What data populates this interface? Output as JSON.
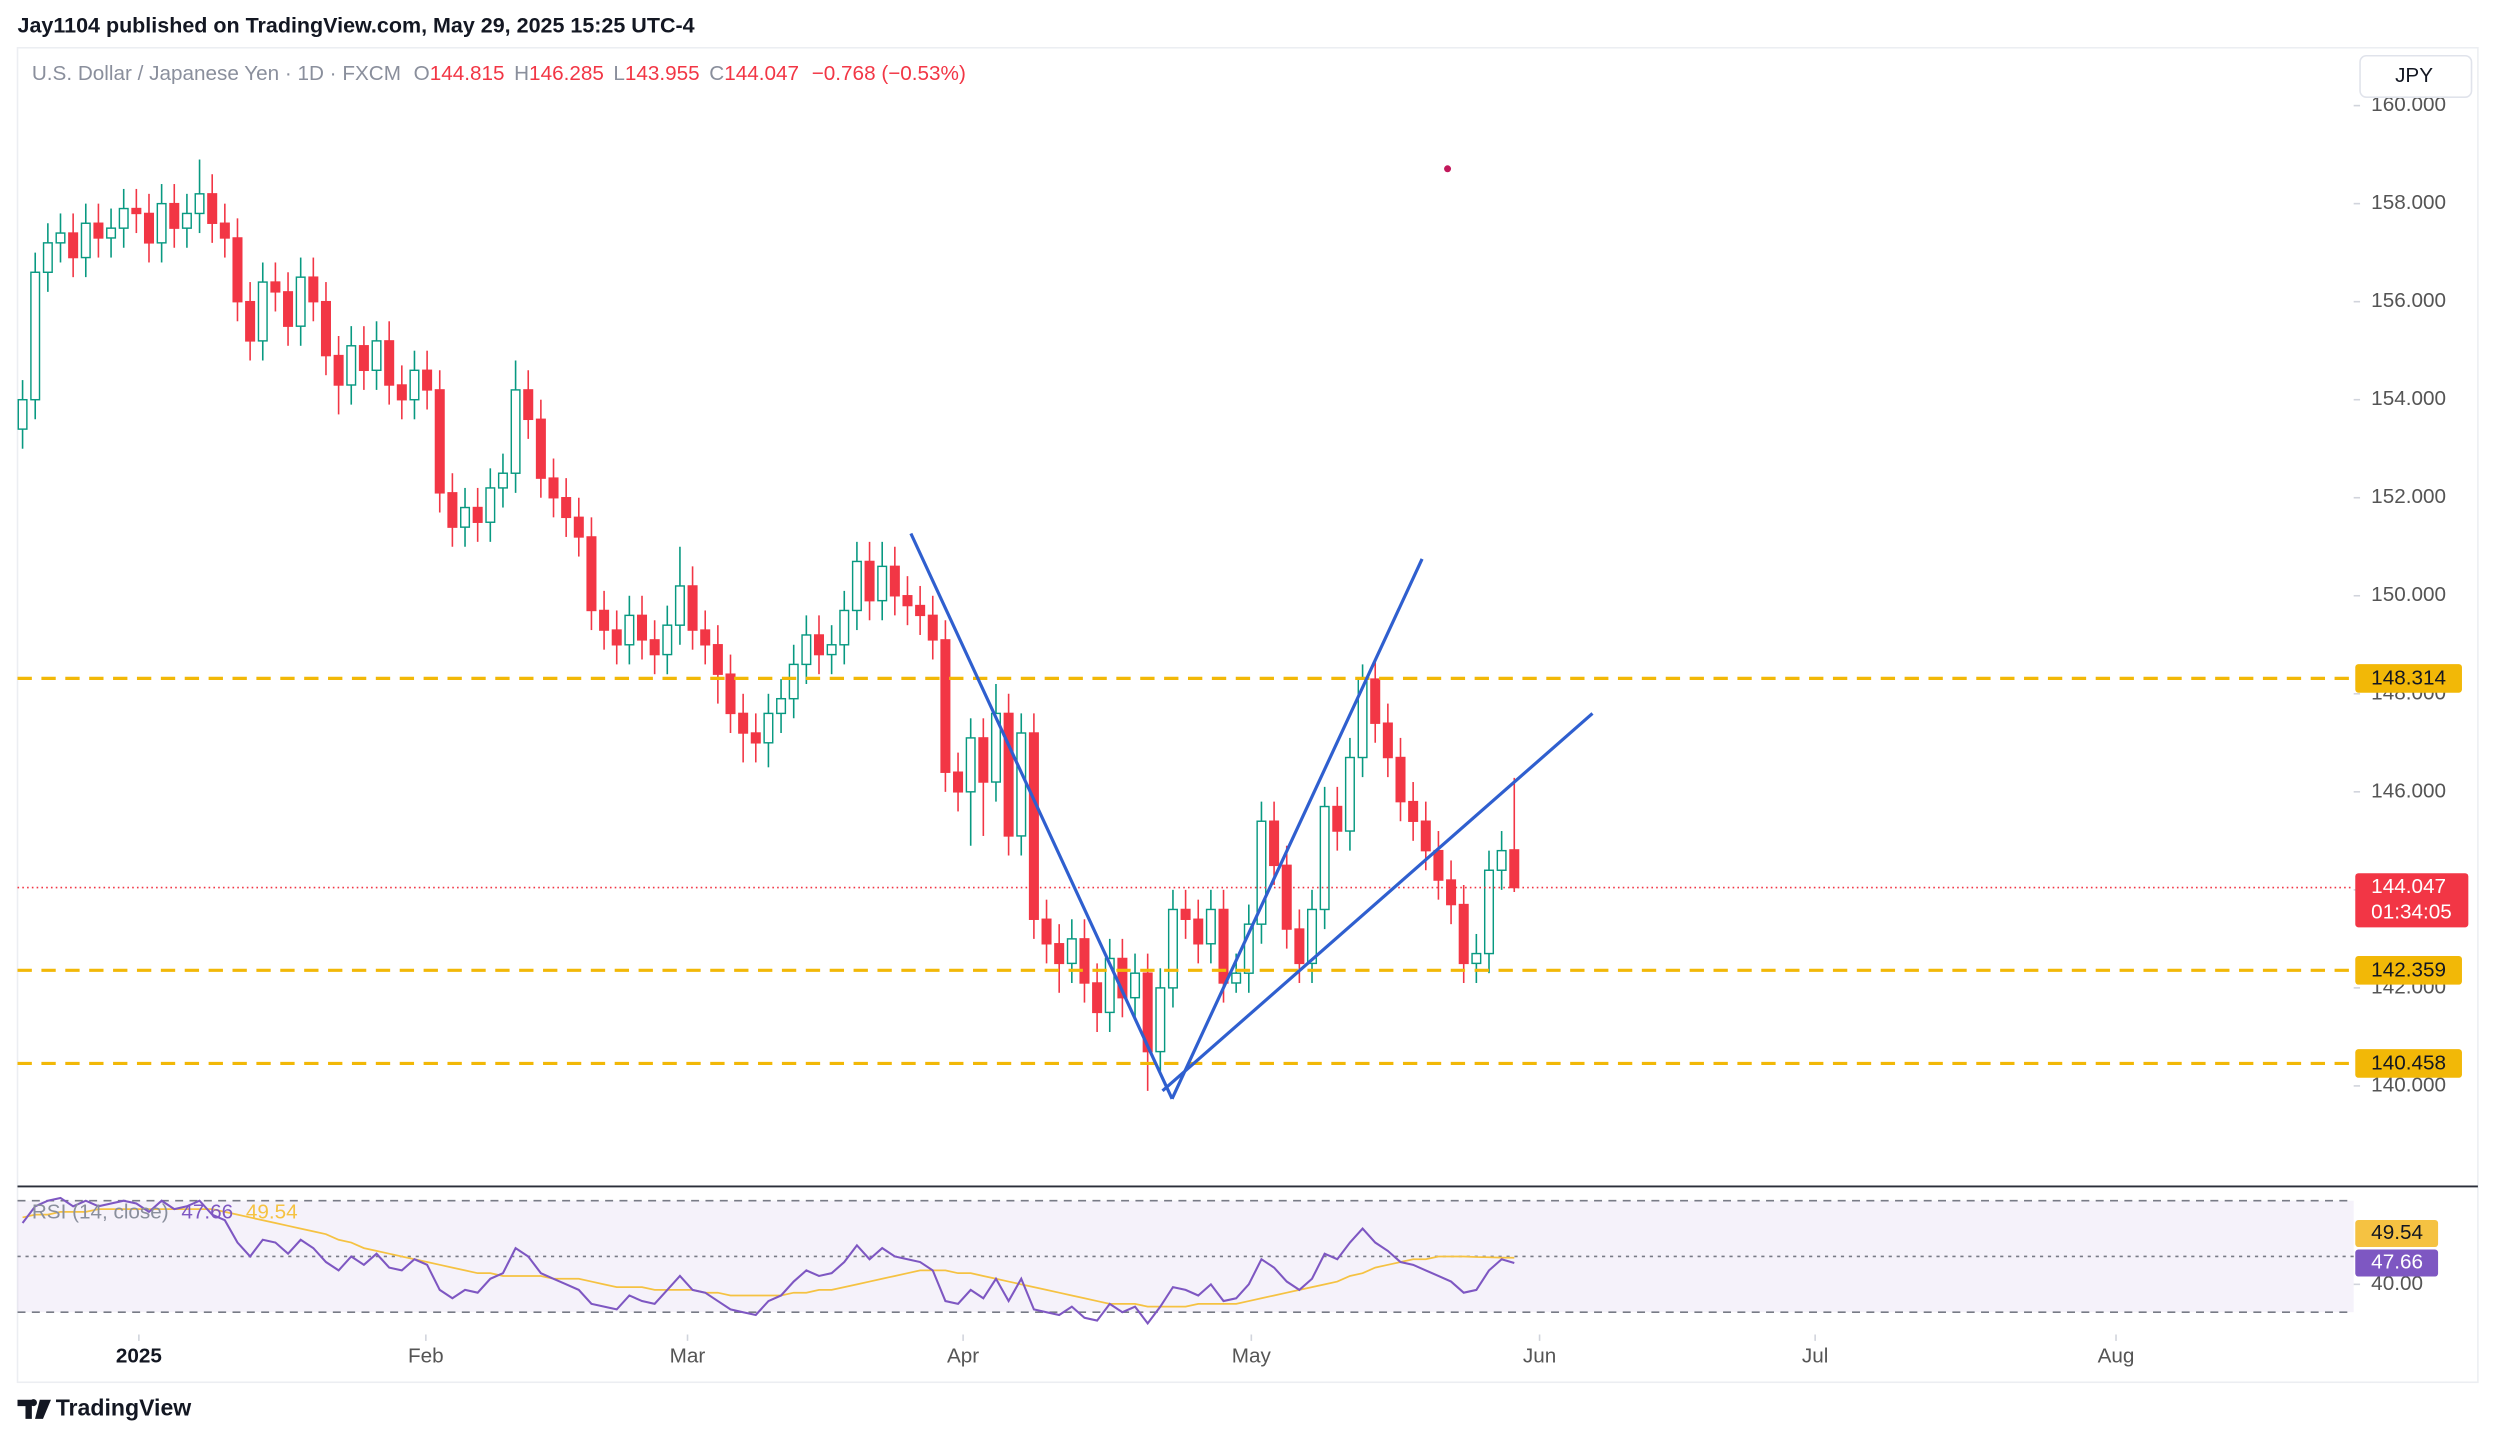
{
  "header": "Jay1104 published on TradingView.com, May 29, 2025 15:25 UTC-4",
  "footer": "TradingView",
  "chart_data": [
    {
      "type": "candlestick",
      "title": "U.S. Dollar / Japanese Yen · 1D · FXCM",
      "legend_keys": [
        "O",
        "H",
        "L",
        "C"
      ],
      "change": "−0.768 (−0.53%)",
      "currency": "JPY",
      "countdown": "01:34:05",
      "up_color": "#089981",
      "down_color": "#f23645",
      "level_color": "#f2b807",
      "grid": false,
      "open": [
        153.4,
        154.0,
        156.6,
        157.2,
        157.4,
        156.9,
        157.6,
        157.3,
        157.5,
        157.9,
        157.8,
        157.2,
        158.0,
        157.5,
        157.8,
        158.2,
        157.6,
        157.3,
        156.0,
        155.2,
        156.4,
        156.2,
        155.5,
        156.5,
        156.0,
        154.9,
        154.3,
        155.1,
        154.6,
        155.2,
        154.3,
        154.0,
        154.6,
        154.2,
        152.1,
        151.4,
        151.8,
        151.5,
        152.2,
        152.5,
        154.2,
        153.6,
        152.4,
        152.0,
        151.6,
        151.2,
        149.7,
        149.3,
        149.0,
        149.6,
        149.1,
        148.8,
        149.4,
        150.2,
        149.3,
        149.0,
        148.4,
        147.6,
        147.2,
        147.0,
        147.6,
        147.9,
        148.6,
        149.2,
        148.8,
        149.0,
        149.7,
        150.7,
        149.9,
        150.6,
        150.0,
        149.8,
        149.6,
        149.1,
        146.4,
        146.0,
        147.1,
        146.2,
        147.6,
        145.1,
        147.2,
        143.4,
        142.9,
        142.5,
        143.0,
        142.1,
        141.5,
        142.6,
        141.8,
        142.3,
        140.7,
        142.0,
        143.6,
        143.4,
        142.9,
        143.6,
        142.1,
        142.3,
        143.3,
        145.4,
        144.5,
        143.2,
        142.5,
        143.6,
        145.7,
        145.2,
        146.7,
        148.3,
        147.4,
        146.7,
        145.8,
        145.4,
        144.8,
        144.2,
        143.7,
        142.5,
        142.7,
        144.4,
        144.815
      ],
      "high": [
        154.4,
        157.0,
        157.6,
        157.8,
        157.8,
        158.0,
        158.0,
        157.9,
        158.3,
        158.3,
        158.2,
        158.4,
        158.4,
        158.2,
        158.9,
        158.6,
        158.0,
        157.7,
        156.4,
        156.8,
        156.8,
        156.6,
        156.9,
        156.9,
        156.4,
        155.3,
        155.5,
        155.5,
        155.6,
        155.6,
        154.7,
        155.0,
        155.0,
        154.6,
        152.5,
        152.2,
        152.2,
        152.6,
        152.9,
        154.8,
        154.6,
        154.0,
        152.8,
        152.4,
        152.0,
        151.6,
        150.1,
        149.7,
        150.0,
        150.0,
        149.5,
        149.8,
        151.0,
        150.6,
        149.7,
        149.4,
        148.8,
        148.0,
        147.6,
        148.0,
        148.3,
        149.0,
        149.6,
        149.6,
        149.4,
        150.1,
        151.1,
        151.1,
        151.1,
        151.0,
        150.4,
        150.2,
        150.0,
        149.5,
        146.8,
        147.5,
        147.5,
        148.2,
        148.0,
        147.6,
        147.6,
        143.8,
        143.3,
        143.4,
        143.4,
        142.5,
        143.0,
        143.0,
        142.7,
        142.7,
        142.4,
        144.0,
        144.0,
        143.8,
        144.0,
        144.0,
        142.7,
        143.7,
        145.8,
        145.8,
        144.9,
        143.6,
        144.0,
        146.1,
        146.1,
        147.1,
        148.6,
        148.7,
        147.8,
        147.1,
        146.2,
        145.8,
        145.2,
        144.6,
        144.1,
        143.1,
        144.8,
        145.2,
        146.285
      ],
      "low": [
        153.0,
        153.6,
        156.2,
        156.8,
        156.5,
        156.5,
        156.9,
        156.9,
        157.1,
        157.4,
        156.8,
        156.8,
        157.1,
        157.1,
        157.4,
        157.2,
        156.9,
        155.6,
        154.8,
        154.8,
        155.8,
        155.1,
        155.1,
        155.6,
        154.5,
        153.7,
        153.9,
        154.2,
        154.2,
        153.9,
        153.6,
        153.6,
        153.8,
        151.7,
        151.0,
        151.0,
        151.1,
        151.1,
        151.8,
        152.1,
        153.2,
        152.0,
        151.6,
        151.2,
        150.8,
        149.3,
        148.9,
        148.6,
        148.6,
        148.7,
        148.4,
        148.4,
        149.0,
        148.9,
        148.6,
        147.8,
        147.2,
        146.6,
        146.6,
        146.5,
        147.2,
        147.5,
        148.2,
        148.4,
        148.4,
        148.6,
        149.3,
        149.5,
        149.5,
        149.6,
        149.4,
        149.2,
        148.7,
        146.0,
        145.6,
        144.9,
        145.1,
        145.8,
        144.7,
        144.7,
        143.0,
        142.5,
        141.9,
        142.1,
        141.7,
        141.1,
        141.1,
        141.4,
        141.4,
        139.9,
        140.3,
        141.6,
        143.0,
        142.5,
        142.5,
        141.7,
        141.9,
        141.9,
        142.9,
        144.1,
        142.8,
        142.1,
        142.1,
        143.2,
        144.8,
        144.8,
        146.3,
        147.0,
        146.3,
        145.4,
        145.0,
        144.4,
        143.8,
        143.3,
        142.1,
        142.1,
        142.3,
        144.0,
        143.955
      ],
      "close": [
        154.0,
        156.6,
        157.2,
        157.4,
        156.9,
        157.6,
        157.3,
        157.5,
        157.9,
        157.8,
        157.2,
        158.0,
        157.5,
        157.8,
        158.2,
        157.6,
        157.3,
        156.0,
        155.2,
        156.4,
        156.2,
        155.5,
        156.5,
        156.0,
        154.9,
        154.3,
        155.1,
        154.6,
        155.2,
        154.3,
        154.0,
        154.6,
        154.2,
        152.1,
        151.4,
        151.8,
        151.5,
        152.2,
        152.5,
        154.2,
        153.6,
        152.4,
        152.0,
        151.6,
        151.2,
        149.7,
        149.3,
        149.0,
        149.6,
        149.1,
        148.8,
        149.4,
        150.2,
        149.3,
        149.0,
        148.4,
        147.6,
        147.2,
        147.0,
        147.6,
        147.9,
        148.6,
        149.2,
        148.8,
        149.0,
        149.7,
        150.7,
        149.9,
        150.6,
        150.0,
        149.8,
        149.6,
        149.1,
        146.4,
        146.0,
        147.1,
        146.2,
        147.6,
        145.1,
        147.2,
        143.4,
        142.9,
        142.5,
        143.0,
        142.1,
        141.5,
        142.6,
        141.8,
        142.3,
        140.7,
        142.0,
        143.6,
        143.4,
        142.9,
        143.6,
        142.1,
        142.3,
        143.3,
        145.4,
        144.5,
        143.2,
        142.5,
        143.6,
        145.7,
        145.2,
        146.7,
        148.3,
        147.4,
        146.7,
        145.8,
        145.4,
        144.8,
        144.2,
        143.7,
        142.5,
        142.7,
        144.4,
        144.8,
        144.047
      ],
      "levels": [
        148.314,
        142.359,
        140.458
      ],
      "ylim": [
        137.95,
        161.18
      ],
      "yticks": [
        {
          "value": 140,
          "label": "140.000"
        },
        {
          "value": 142,
          "label": "142.000"
        },
        {
          "value": 144,
          "label": "144.000"
        },
        {
          "value": 146,
          "label": "146.000"
        },
        {
          "value": 148,
          "label": "148.000"
        },
        {
          "value": 150,
          "label": "150.000"
        },
        {
          "value": 152,
          "label": "152.000"
        },
        {
          "value": 154,
          "label": "154.000"
        },
        {
          "value": 156,
          "label": "156.000"
        },
        {
          "value": 158,
          "label": "158.000"
        },
        {
          "value": 160,
          "label": "160.000"
        }
      ],
      "xlim": [
        -0.4,
        184.4
      ],
      "xticks": [
        {
          "value": 9.2,
          "label": "2025"
        },
        {
          "value": 31.9,
          "label": "Feb"
        },
        {
          "value": 52.6,
          "label": "Mar"
        },
        {
          "value": 74.4,
          "label": "Apr"
        },
        {
          "value": 97.2,
          "label": "May"
        },
        {
          "value": 120,
          "label": "Jun"
        },
        {
          "value": 141.8,
          "label": "Jul"
        },
        {
          "value": 165.6,
          "label": "Aug"
        }
      ]
    },
    {
      "type": "line",
      "title": "RSI (14, close)",
      "series": [
        {
          "color": "#7e57c2",
          "values": [
            62,
            68,
            70,
            71,
            68,
            70,
            68,
            69,
            70,
            69,
            66,
            70,
            67,
            68,
            70,
            65,
            63,
            55,
            50,
            56,
            55,
            51,
            56,
            53,
            48,
            45,
            50,
            47,
            51,
            46,
            45,
            49,
            47,
            38,
            35,
            38,
            37,
            42,
            44,
            53,
            50,
            44,
            42,
            40,
            38,
            33,
            32,
            31,
            36,
            34,
            33,
            38,
            43,
            38,
            37,
            34,
            31,
            30,
            29,
            34,
            36,
            41,
            45,
            43,
            44,
            48,
            54,
            49,
            53,
            50,
            49,
            48,
            45,
            34,
            33,
            38,
            35,
            42,
            34,
            42,
            31,
            30,
            29,
            32,
            28,
            27,
            33,
            30,
            32,
            26,
            32,
            39,
            38,
            36,
            40,
            34,
            35,
            40,
            49,
            46,
            41,
            38,
            42,
            51,
            49,
            55,
            60,
            55,
            52,
            48,
            47,
            45,
            43,
            41,
            37,
            38,
            45,
            49,
            47.66
          ]
        },
        {
          "color": "#f5c242",
          "values": [
            64,
            65,
            65,
            66,
            66,
            66,
            67,
            67,
            67,
            67,
            67,
            67,
            67,
            67,
            67,
            67,
            66,
            65,
            64,
            63,
            62,
            61,
            60,
            59,
            58,
            56,
            55,
            53,
            52,
            51,
            50,
            49,
            48,
            47,
            46,
            45,
            44,
            44,
            43,
            43,
            43,
            43,
            42,
            42,
            42,
            41,
            40,
            39,
            39,
            39,
            38,
            38,
            38,
            38,
            37,
            37,
            36,
            36,
            36,
            36,
            36,
            37,
            37,
            38,
            38,
            39,
            40,
            41,
            42,
            43,
            44,
            45,
            45,
            45,
            44,
            44,
            43,
            42,
            41,
            40,
            39,
            38,
            37,
            36,
            35,
            34,
            33,
            33,
            33,
            32,
            32,
            32,
            32,
            33,
            33,
            33,
            33,
            34,
            35,
            36,
            37,
            38,
            39,
            40,
            41,
            43,
            44,
            46,
            47,
            48,
            49,
            49,
            50,
            50,
            50,
            49.8,
            49.7,
            49.6,
            49.54
          ]
        }
      ],
      "band_lines": [
        30,
        50,
        70
      ],
      "ylim": [
        22,
        74
      ],
      "yticks": [
        {
          "value": 40,
          "label": "40.00"
        }
      ]
    }
  ]
}
